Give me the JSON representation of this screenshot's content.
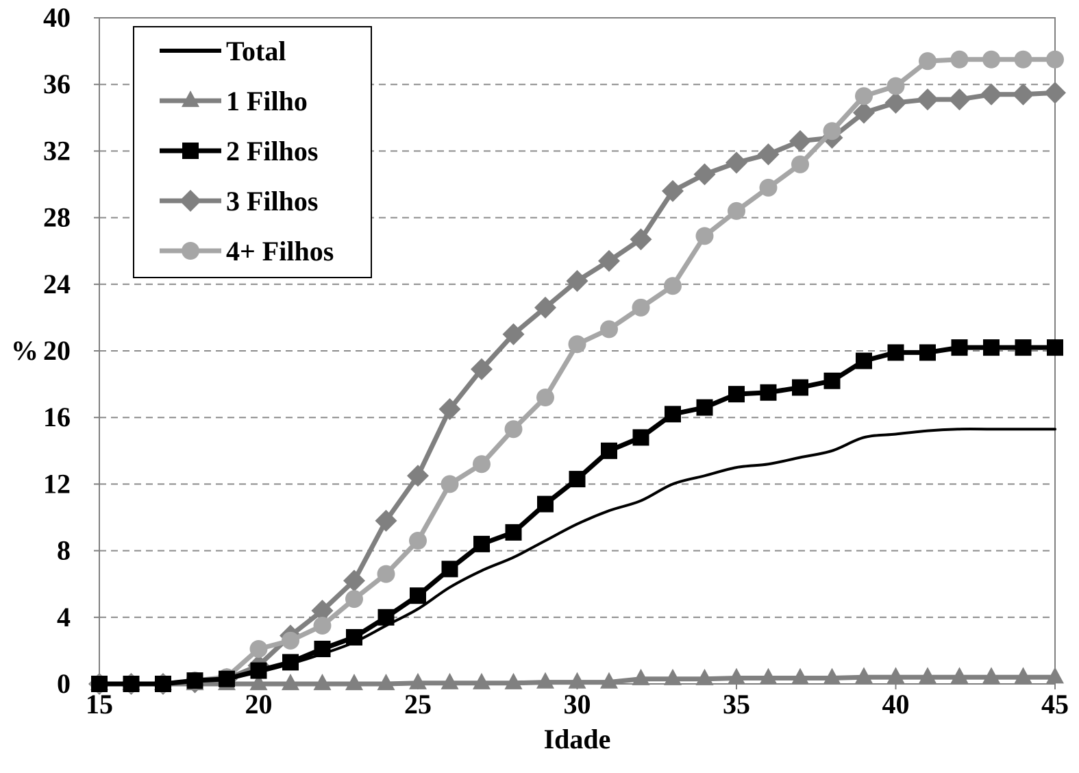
{
  "chart_data": {
    "type": "line",
    "title": "",
    "xlabel": "Idade",
    "ylabel": "%",
    "xlim": [
      15,
      45
    ],
    "ylim": [
      0,
      40
    ],
    "x_ticks": [
      "15",
      "20",
      "25",
      "30",
      "35",
      "40",
      "45"
    ],
    "y_ticks": [
      "0",
      "4",
      "8",
      "12",
      "16",
      "20",
      "24",
      "28",
      "32",
      "36",
      "40"
    ],
    "grid": "horizontal dashed",
    "legend_position": "top-left",
    "x": [
      15,
      16,
      17,
      18,
      19,
      20,
      21,
      22,
      23,
      24,
      25,
      26,
      27,
      28,
      29,
      30,
      31,
      32,
      33,
      34,
      35,
      36,
      37,
      38,
      39,
      40,
      41,
      42,
      43,
      44,
      45
    ],
    "series": [
      {
        "name": "Total",
        "color": "#000000",
        "marker": "none",
        "values": [
          0,
          0,
          0,
          0.1,
          0.3,
          0.7,
          1.2,
          1.8,
          2.5,
          3.5,
          4.5,
          5.8,
          6.8,
          7.6,
          8.6,
          9.6,
          10.4,
          11.0,
          12.0,
          12.5,
          13.0,
          13.2,
          13.6,
          14.0,
          14.8,
          15.0,
          15.2,
          15.3,
          15.3,
          15.3,
          15.3
        ]
      },
      {
        "name": "1 Filho",
        "color": "#808080",
        "marker": "triangle",
        "values": [
          0,
          0,
          0,
          0,
          0,
          0,
          0,
          0,
          0,
          0,
          0.05,
          0.05,
          0.05,
          0.05,
          0.1,
          0.1,
          0.1,
          0.3,
          0.3,
          0.3,
          0.35,
          0.35,
          0.35,
          0.35,
          0.4,
          0.4,
          0.4,
          0.4,
          0.4,
          0.4,
          0.4
        ]
      },
      {
        "name": "2 Filhos",
        "color": "#000000",
        "marker": "square",
        "values": [
          0,
          0,
          0,
          0.2,
          0.3,
          0.8,
          1.3,
          2.1,
          2.8,
          4.0,
          5.3,
          6.9,
          8.4,
          9.1,
          10.8,
          12.3,
          14.0,
          14.8,
          16.2,
          16.6,
          17.4,
          17.5,
          17.8,
          18.2,
          19.4,
          19.9,
          19.9,
          20.2,
          20.2,
          20.2,
          20.2
        ]
      },
      {
        "name": "3 Filhos",
        "color": "#808080",
        "marker": "diamond",
        "values": [
          0,
          0,
          0,
          0.1,
          0.3,
          1.1,
          2.9,
          4.4,
          6.2,
          9.8,
          12.5,
          16.5,
          18.9,
          21.0,
          22.6,
          24.2,
          25.4,
          26.7,
          29.6,
          30.6,
          31.3,
          31.8,
          32.6,
          32.8,
          34.3,
          34.9,
          35.1,
          35.1,
          35.4,
          35.4,
          35.5
        ]
      },
      {
        "name": "4+ Filhos",
        "color": "#a6a6a6",
        "marker": "circle",
        "values": [
          0,
          0,
          0,
          0.2,
          0.4,
          2.1,
          2.6,
          3.5,
          5.1,
          6.6,
          8.6,
          12.0,
          13.2,
          15.3,
          17.2,
          20.4,
          21.3,
          22.6,
          23.9,
          26.9,
          28.4,
          29.8,
          31.2,
          33.2,
          35.3,
          35.9,
          37.4,
          37.5,
          37.5,
          37.5,
          37.5
        ]
      }
    ]
  }
}
